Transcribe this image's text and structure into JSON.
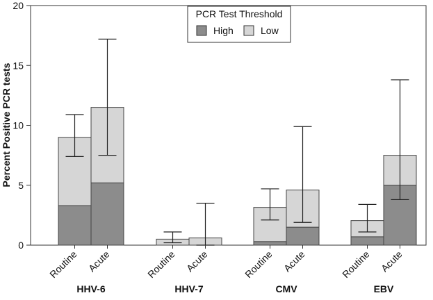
{
  "chart_data": {
    "type": "bar",
    "stacked": true,
    "ylabel": "Percent Positive PCR tests",
    "xlabel": "",
    "ylim": [
      0,
      20
    ],
    "yticks": [
      0,
      5,
      10,
      15,
      20
    ],
    "grid": false,
    "legend": {
      "title": "PCR Test Threshold",
      "placement": "top-center",
      "entries": [
        {
          "name": "High",
          "color": "#8c8c8c"
        },
        {
          "name": "Low",
          "color": "#d6d6d6"
        }
      ]
    },
    "groups": [
      "HHV-6",
      "HHV-7",
      "CMV",
      "EBV"
    ],
    "categories": [
      "Routine",
      "Acute"
    ],
    "series": [
      {
        "name": "High",
        "color": "#8c8c8c",
        "values": [
          [
            3.3,
            5.2
          ],
          [
            0.0,
            0.0
          ],
          [
            0.3,
            1.5
          ],
          [
            0.7,
            5.0
          ]
        ]
      },
      {
        "name": "Low",
        "color": "#d6d6d6",
        "values": [
          [
            5.7,
            6.3
          ],
          [
            0.5,
            0.6
          ],
          [
            2.85,
            3.1
          ],
          [
            1.35,
            2.5
          ]
        ]
      }
    ],
    "totals": [
      [
        9.0,
        11.5
      ],
      [
        0.5,
        0.6
      ],
      [
        3.15,
        4.6
      ],
      [
        2.05,
        7.5
      ]
    ],
    "error_bars": [
      [
        [
          7.4,
          10.9
        ],
        [
          7.5,
          17.2
        ]
      ],
      [
        [
          0.2,
          1.1
        ],
        [
          0.0,
          3.5
        ]
      ],
      [
        [
          2.1,
          4.7
        ],
        [
          1.9,
          9.9
        ]
      ],
      [
        [
          1.1,
          3.4
        ],
        [
          3.8,
          13.8
        ]
      ]
    ]
  }
}
